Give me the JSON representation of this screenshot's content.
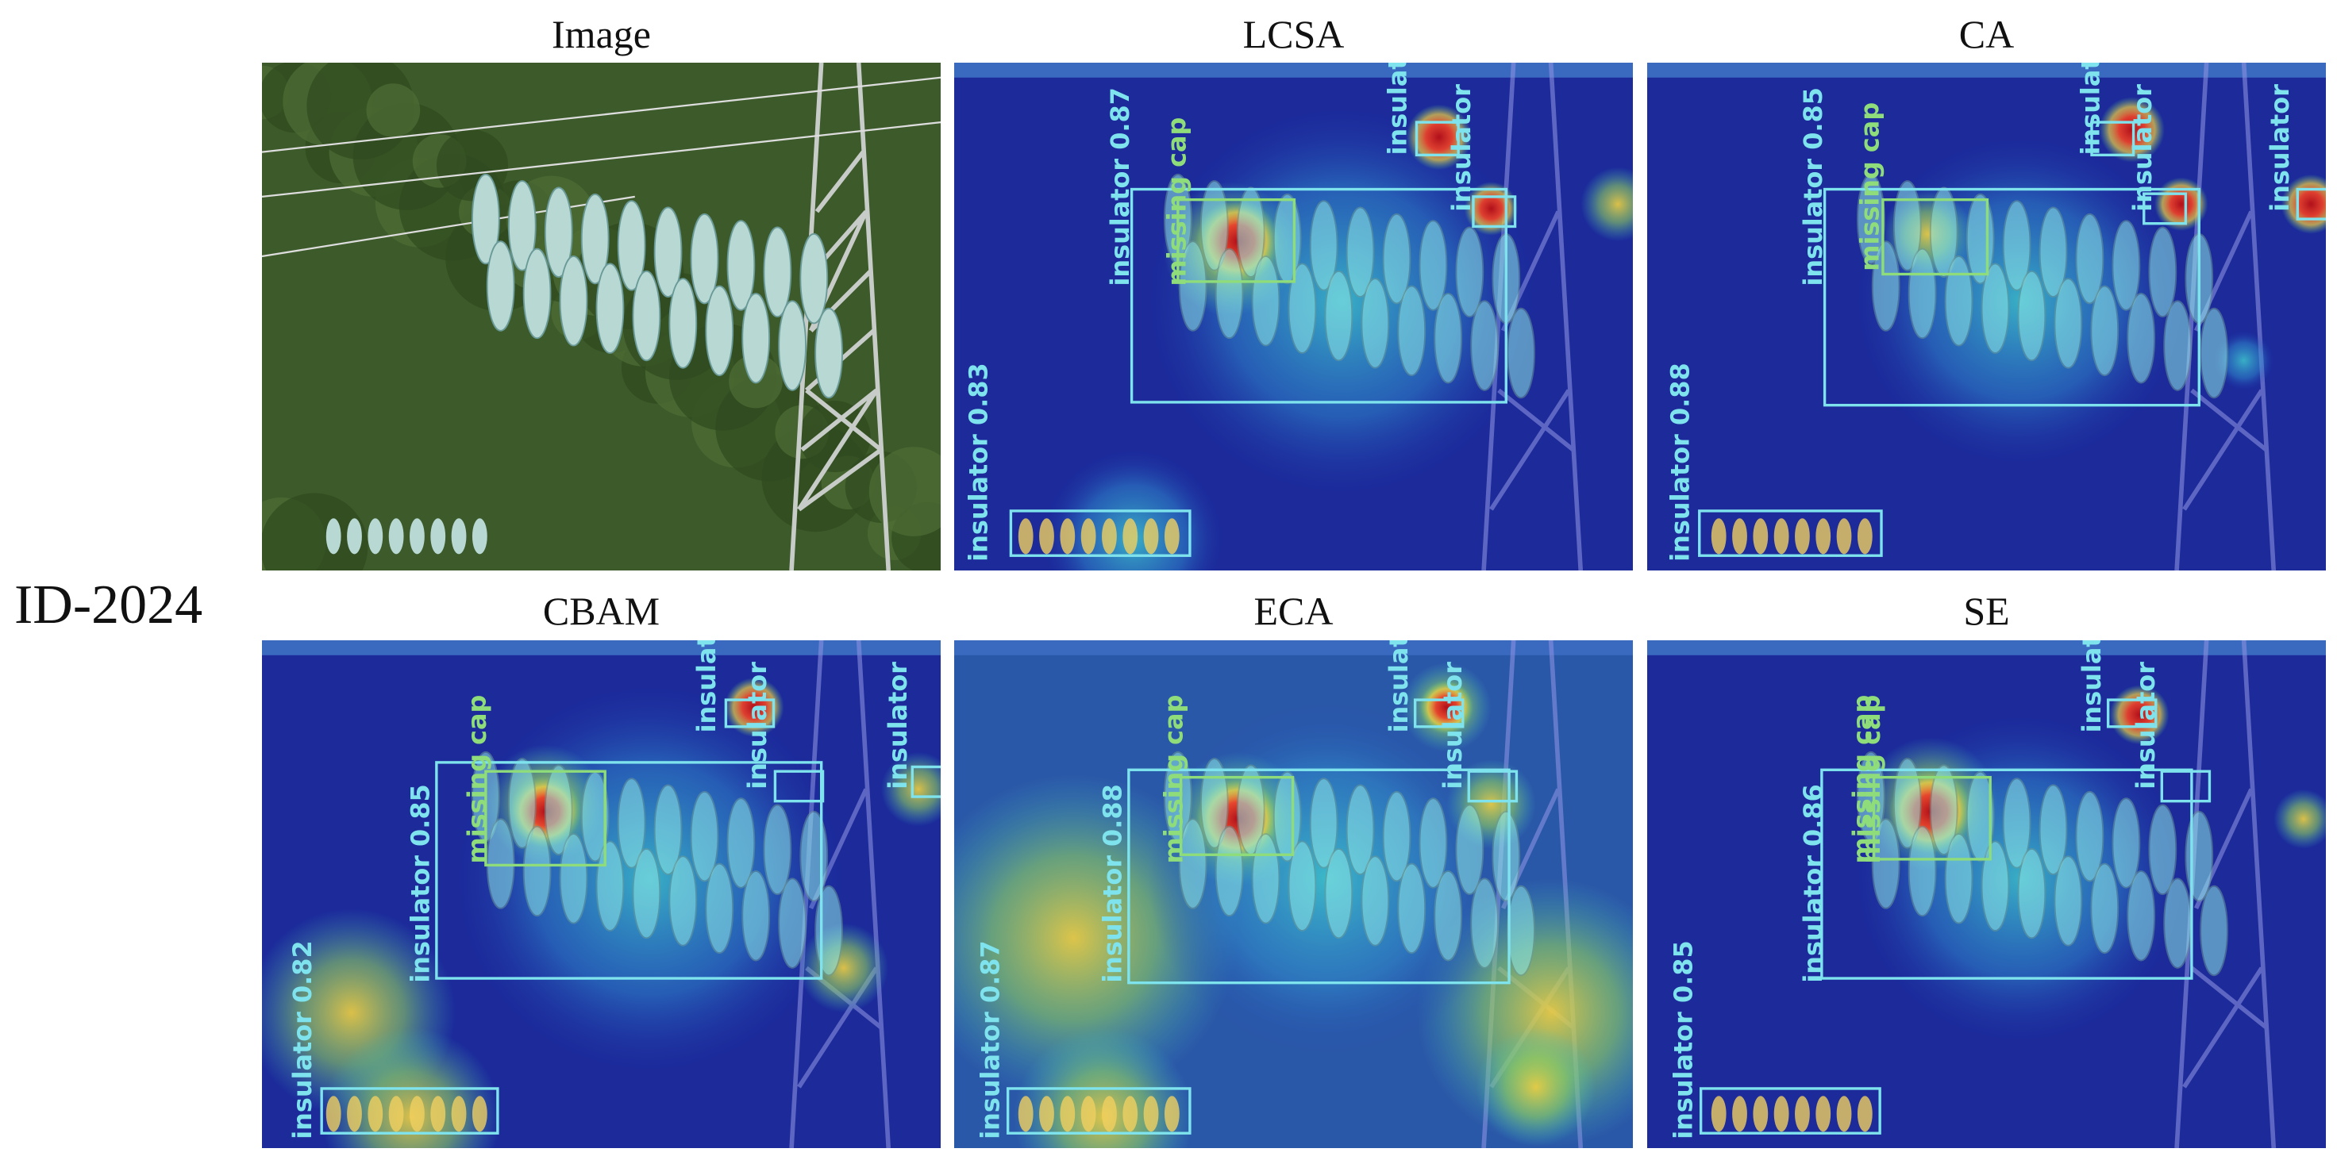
{
  "row_label": "ID-2024",
  "panels": [
    {
      "title": "Image",
      "labels": []
    },
    {
      "title": "LCSA",
      "labels": [
        "insulator 0.87",
        "missing cap",
        "insulator 0.83",
        "insulator",
        "insulator"
      ]
    },
    {
      "title": "CA",
      "labels": [
        "insulator 0.85",
        "missing cap",
        "insulator 0.88",
        "insulator",
        "insulator",
        "insulator"
      ]
    },
    {
      "title": "CBAM",
      "labels": [
        "insulator 0.85",
        "missing cap",
        "insulator 0.82",
        "insulator",
        "insulator",
        "insulator"
      ]
    },
    {
      "title": "ECA",
      "labels": [
        "insulator 0.88",
        "missing cap",
        "insulator 0.87",
        "insulator",
        "insulator"
      ]
    },
    {
      "title": "SE",
      "labels": [
        "insulator 0.86",
        "missing cap",
        "missing cap",
        "insulator 0.85",
        "insulator",
        "insulator"
      ]
    }
  ]
}
